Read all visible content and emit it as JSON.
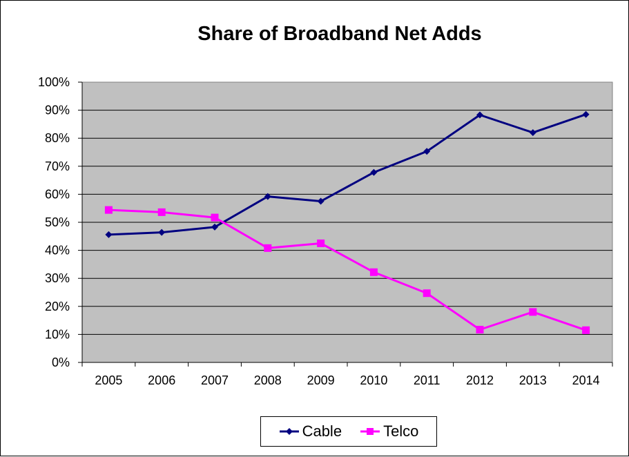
{
  "chart_data": {
    "type": "line",
    "title": "Share of Broadband Net Adds",
    "xlabel": "",
    "ylabel": "",
    "categories": [
      "2005",
      "2006",
      "2007",
      "2008",
      "2009",
      "2010",
      "2011",
      "2012",
      "2013",
      "2014"
    ],
    "ylim": [
      0,
      100
    ],
    "y_ticks": [
      "0%",
      "10%",
      "20%",
      "30%",
      "40%",
      "50%",
      "60%",
      "70%",
      "80%",
      "90%",
      "100%"
    ],
    "grid": true,
    "legend_position": "bottom",
    "plot_background": "#c0c0c0",
    "series": [
      {
        "name": "Cable",
        "color": "#000080",
        "marker": "diamond",
        "values": [
          45.6,
          46.4,
          48.3,
          59.2,
          57.5,
          67.8,
          75.3,
          88.3,
          82.0,
          88.5
        ]
      },
      {
        "name": "Telco",
        "color": "#ff00ff",
        "marker": "square",
        "values": [
          54.4,
          53.6,
          51.7,
          40.8,
          42.5,
          32.2,
          24.7,
          11.7,
          18.0,
          11.5
        ]
      }
    ]
  }
}
